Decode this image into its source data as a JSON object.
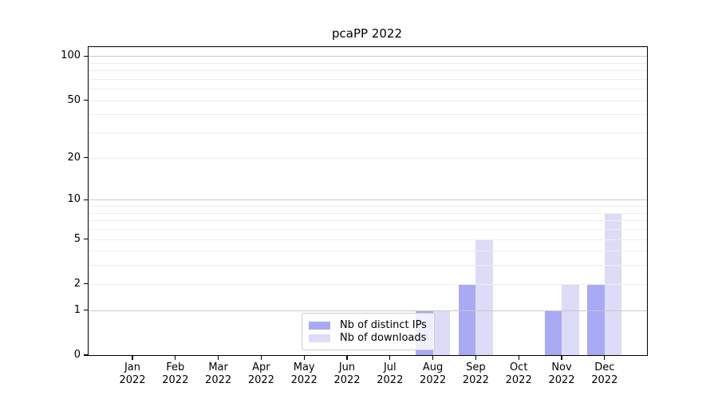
{
  "chart_data": {
    "type": "bar",
    "title": "pcaPP 2022",
    "categories": [
      "Jan 2022",
      "Feb 2022",
      "Mar 2022",
      "Apr 2022",
      "May 2022",
      "Jun 2022",
      "Jul 2022",
      "Aug 2022",
      "Sep 2022",
      "Oct 2022",
      "Nov 2022",
      "Dec 2022"
    ],
    "series": [
      {
        "name": "Nb of distinct IPs",
        "color": "#a9a9f4",
        "values": [
          0,
          0,
          0,
          0,
          0,
          0,
          0,
          1,
          2,
          0,
          1,
          2
        ]
      },
      {
        "name": "Nb of downloads",
        "color": "#dcdcf8",
        "values": [
          0,
          0,
          0,
          0,
          0,
          0,
          0,
          1,
          5,
          0,
          2,
          8
        ]
      }
    ],
    "xlabel": "",
    "ylabel": "",
    "yscale": "log1p",
    "ylim": [
      0,
      115
    ],
    "yticks": [
      0,
      1,
      2,
      5,
      10,
      20,
      50,
      100
    ],
    "gridlines": {
      "major": [
        1,
        10,
        100
      ],
      "minor": [
        2,
        3,
        4,
        5,
        6,
        7,
        8,
        9,
        20,
        30,
        40,
        50,
        60,
        70,
        80,
        90
      ]
    },
    "grid": true,
    "legend_position": "inside-bottom-center"
  }
}
